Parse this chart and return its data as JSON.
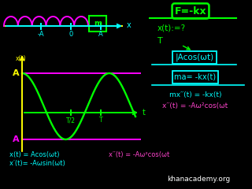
{
  "bg_color": "#000000",
  "spring_color": "#ff00ff",
  "box_color": "#00ff00",
  "cyan_color": "#00ffff",
  "yellow_color": "#ffff00",
  "magenta_color": "#ff00ff",
  "green_color": "#00ff00",
  "red_color": "#ff44aa",
  "white_color": "#ffffff",
  "khan_text": "khanacademy.org",
  "label_neg_A": "-A",
  "label_0": "0",
  "label_A": "A",
  "label_x": "x",
  "label_xt": "x(t)",
  "label_t": "t",
  "label_T2": "T/2",
  "label_T": "T",
  "label_m": "m"
}
